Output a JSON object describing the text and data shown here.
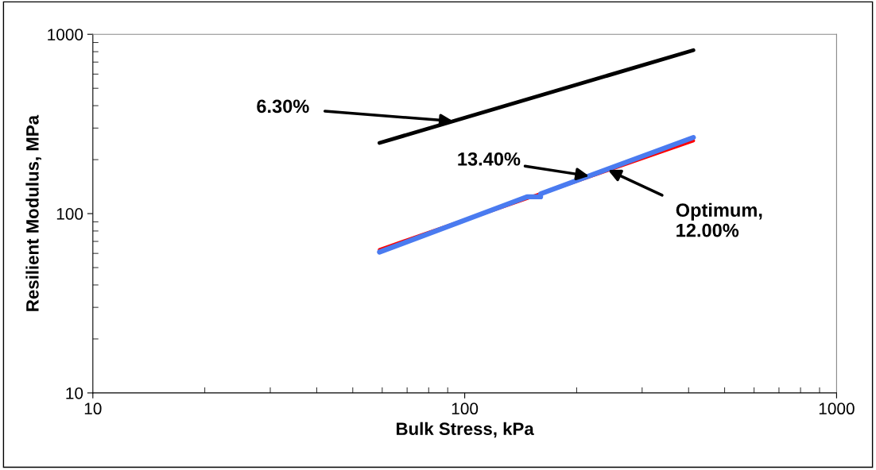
{
  "chart_data": {
    "type": "line",
    "xlabel": "Bulk Stress, kPa",
    "ylabel": "Resilient Modulus, MPa",
    "log": "xy",
    "xlim": [
      10,
      1000
    ],
    "ylim": [
      10,
      1000
    ],
    "xticks": [
      10,
      100,
      1000
    ],
    "yticks": [
      10,
      100,
      1000
    ],
    "grid": false,
    "marker": "none",
    "line_style": "solid",
    "series": [
      {
        "color": "#000000",
        "x": [
          59,
          412
        ],
        "values": [
          248,
          815
        ]
      },
      {
        "color": "#ff0000",
        "x": [
          59,
          412
        ],
        "values": [
          63,
          255
        ]
      },
      {
        "color": "#4a7bf0",
        "x": [
          59,
          147,
          160,
          160,
          412
        ],
        "values": [
          61,
          124,
          124,
          129,
          266
        ]
      }
    ],
    "annotations": [
      {
        "text": "6.30%",
        "x": 93,
        "y": 328
      },
      {
        "text": "13.40%",
        "x": 216,
        "y": 162
      },
      {
        "text": "Optimum,\n12.00%",
        "x": 243,
        "y": 175
      }
    ]
  }
}
